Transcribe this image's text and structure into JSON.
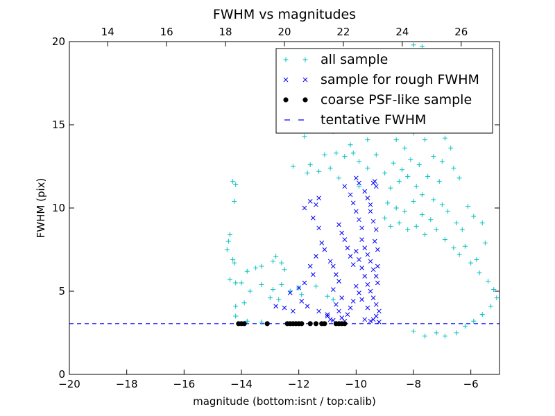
{
  "chart_data": {
    "type": "scatter",
    "title": "FWHM vs magnitudes",
    "xlabel": "magnitude (bottom:isnt / top:calib)",
    "ylabel": "FWHM (pix)",
    "xlim": [
      -20,
      -5
    ],
    "ylim": [
      0,
      20
    ],
    "xlim_top": [
      12.7,
      27.3
    ],
    "x_ticks": [
      -20,
      -18,
      -16,
      -14,
      -12,
      -10,
      -8,
      -6
    ],
    "x_tick_labels": [
      "−20",
      "−18",
      "−16",
      "−14",
      "−12",
      "−10",
      "−8",
      "−6"
    ],
    "x_top_ticks": [
      14,
      16,
      18,
      20,
      22,
      24,
      26
    ],
    "x_top_tick_labels": [
      "14",
      "16",
      "18",
      "20",
      "22",
      "24",
      "26"
    ],
    "y_ticks": [
      0,
      5,
      10,
      15,
      20
    ],
    "y_tick_labels": [
      "0",
      "5",
      "10",
      "15",
      "20"
    ],
    "grid": false,
    "legend": {
      "placement": "top-right",
      "entries": [
        {
          "label": "all sample",
          "marker": "plus",
          "color": "#00bfbf"
        },
        {
          "label": "sample for rough FWHM",
          "marker": "x",
          "color": "#0000ff"
        },
        {
          "label": "coarse PSF-like sample",
          "marker": "dot",
          "color": "#000000"
        },
        {
          "label": "tentative FWHM",
          "marker": "dash",
          "color": "#0000ff"
        }
      ]
    },
    "tentative_fwhm": 3.05,
    "series": [
      {
        "name": "all sample",
        "marker": "plus",
        "color": "#00bfbf",
        "points": [
          [
            -14.3,
            11.6
          ],
          [
            -14.2,
            11.4
          ],
          [
            -14.25,
            10.4
          ],
          [
            -14.4,
            8.4
          ],
          [
            -14.45,
            8.0
          ],
          [
            -14.5,
            7.5
          ],
          [
            -14.3,
            6.9
          ],
          [
            -14.25,
            6.7
          ],
          [
            -13.8,
            6.2
          ],
          [
            -13.5,
            6.4
          ],
          [
            -13.3,
            6.5
          ],
          [
            -12.9,
            6.8
          ],
          [
            -12.8,
            7.1
          ],
          [
            -12.6,
            6.7
          ],
          [
            -12.5,
            6.3
          ],
          [
            -14.4,
            5.7
          ],
          [
            -14.2,
            5.5
          ],
          [
            -14.0,
            5.5
          ],
          [
            -13.7,
            5.0
          ],
          [
            -13.3,
            5.4
          ],
          [
            -12.9,
            5.1
          ],
          [
            -12.6,
            5.4
          ],
          [
            -12.3,
            5.0
          ],
          [
            -12.0,
            5.2
          ],
          [
            -14.2,
            4.1
          ],
          [
            -13.9,
            4.3
          ],
          [
            -13.0,
            4.6
          ],
          [
            -12.7,
            4.5
          ],
          [
            -11.9,
            4.8
          ],
          [
            -11.4,
            5.3
          ],
          [
            -11.0,
            4.7
          ],
          [
            -10.8,
            4.5
          ],
          [
            -14.2,
            3.5
          ],
          [
            -13.8,
            3.2
          ],
          [
            -13.3,
            3.15
          ],
          [
            -11.6,
            12.6
          ],
          [
            -11.3,
            12.2
          ],
          [
            -11.1,
            13.2
          ],
          [
            -10.9,
            12.4
          ],
          [
            -10.7,
            13.3
          ],
          [
            -10.4,
            13.1
          ],
          [
            -10.2,
            13.8
          ],
          [
            -9.9,
            12.8
          ],
          [
            -9.6,
            14.1
          ],
          [
            -9.3,
            13.2
          ],
          [
            -12.2,
            12.5
          ],
          [
            -11.7,
            12.1
          ],
          [
            -10.6,
            11.8
          ],
          [
            -9.9,
            11.3
          ],
          [
            -9.6,
            12.4
          ],
          [
            -10.1,
            13.3
          ],
          [
            -11.0,
            15.2
          ],
          [
            -10.8,
            14.6
          ],
          [
            -10.5,
            16.1
          ],
          [
            -10.1,
            15.6
          ],
          [
            -11.8,
            14.3
          ],
          [
            -12.1,
            15.3
          ],
          [
            -9.2,
            16.8
          ],
          [
            -9.1,
            15.8
          ],
          [
            -8.9,
            15.0
          ],
          [
            -8.6,
            16.4
          ],
          [
            -8.4,
            17.2
          ],
          [
            -8.2,
            16.3
          ],
          [
            -8.1,
            18.2
          ],
          [
            -7.9,
            17.5
          ],
          [
            -7.8,
            19.1
          ],
          [
            -8.0,
            19.8
          ],
          [
            -7.7,
            19.7
          ],
          [
            -7.6,
            18.7
          ],
          [
            -7.5,
            16.1
          ],
          [
            -7.4,
            15.7
          ],
          [
            -7.2,
            15.3
          ],
          [
            -6.9,
            14.2
          ],
          [
            -6.7,
            13.6
          ],
          [
            -6.6,
            12.4
          ],
          [
            -6.4,
            11.8
          ],
          [
            -6.1,
            10.1
          ],
          [
            -5.9,
            9.5
          ],
          [
            -5.6,
            9.1
          ],
          [
            -5.5,
            7.9
          ],
          [
            -5.8,
            6.9
          ],
          [
            -8.6,
            14.1
          ],
          [
            -8.3,
            13.6
          ],
          [
            -8.0,
            14.5
          ],
          [
            -7.6,
            14.1
          ],
          [
            -7.3,
            13.1
          ],
          [
            -7.0,
            12.8
          ],
          [
            -8.7,
            12.7
          ],
          [
            -8.4,
            12.3
          ],
          [
            -8.1,
            12.9
          ],
          [
            -7.8,
            12.6
          ],
          [
            -7.5,
            11.9
          ],
          [
            -7.1,
            11.6
          ],
          [
            -9.0,
            12.1
          ],
          [
            -8.8,
            11.2
          ],
          [
            -8.5,
            11.6
          ],
          [
            -8.2,
            11.9
          ],
          [
            -7.9,
            11.3
          ],
          [
            -7.7,
            10.8
          ],
          [
            -7.3,
            10.5
          ],
          [
            -7.0,
            10.2
          ],
          [
            -6.8,
            9.8
          ],
          [
            -6.5,
            9.1
          ],
          [
            -6.3,
            8.7
          ],
          [
            -6.2,
            7.7
          ],
          [
            -8.9,
            10.3
          ],
          [
            -8.6,
            10.0
          ],
          [
            -8.3,
            9.8
          ],
          [
            -8.0,
            10.4
          ],
          [
            -7.7,
            9.6
          ],
          [
            -7.4,
            9.3
          ],
          [
            -9.0,
            9.4
          ],
          [
            -8.8,
            8.9
          ],
          [
            -8.5,
            9.1
          ],
          [
            -8.2,
            8.7
          ],
          [
            -7.9,
            8.9
          ],
          [
            -7.6,
            8.4
          ],
          [
            -7.2,
            8.7
          ],
          [
            -6.9,
            8.1
          ],
          [
            -6.6,
            7.6
          ],
          [
            -6.4,
            7.2
          ],
          [
            -6.0,
            6.7
          ],
          [
            -5.7,
            6.1
          ],
          [
            -5.4,
            5.6
          ],
          [
            -5.2,
            5.1
          ],
          [
            -5.1,
            4.6
          ],
          [
            -5.3,
            4.1
          ],
          [
            -5.6,
            3.6
          ],
          [
            -5.9,
            3.2
          ],
          [
            -6.2,
            2.9
          ],
          [
            -6.5,
            2.5
          ],
          [
            -6.9,
            2.3
          ],
          [
            -7.2,
            2.5
          ],
          [
            -7.6,
            2.3
          ],
          [
            -8.0,
            2.6
          ]
        ]
      },
      {
        "name": "sample for rough FWHM",
        "marker": "x",
        "color": "#0000ff",
        "points": [
          [
            -11.3,
            10.6
          ],
          [
            -11.4,
            10.2
          ],
          [
            -11.6,
            10.4
          ],
          [
            -11.8,
            10.0
          ],
          [
            -11.5,
            9.4
          ],
          [
            -11.3,
            8.8
          ],
          [
            -11.2,
            7.9
          ],
          [
            -11.1,
            7.5
          ],
          [
            -11.4,
            7.1
          ],
          [
            -11.6,
            6.5
          ],
          [
            -11.5,
            6.0
          ],
          [
            -11.8,
            5.5
          ],
          [
            -12.0,
            5.2
          ],
          [
            -12.3,
            4.9
          ],
          [
            -11.9,
            4.4
          ],
          [
            -11.7,
            4.1
          ],
          [
            -11.3,
            3.8
          ],
          [
            -11.0,
            3.6
          ],
          [
            -10.9,
            6.8
          ],
          [
            -10.8,
            6.5
          ],
          [
            -10.7,
            6.0
          ],
          [
            -10.6,
            5.6
          ],
          [
            -10.8,
            5.1
          ],
          [
            -10.5,
            4.6
          ],
          [
            -10.7,
            4.2
          ],
          [
            -10.6,
            3.8
          ],
          [
            -10.5,
            3.4
          ],
          [
            -10.4,
            3.2
          ],
          [
            -10.6,
            9.0
          ],
          [
            -10.5,
            8.5
          ],
          [
            -10.4,
            8.1
          ],
          [
            -10.3,
            7.6
          ],
          [
            -10.2,
            7.1
          ],
          [
            -10.1,
            6.6
          ],
          [
            -10.4,
            11.3
          ],
          [
            -10.2,
            10.8
          ],
          [
            -10.1,
            10.3
          ],
          [
            -10.0,
            9.8
          ],
          [
            -9.9,
            9.3
          ],
          [
            -9.8,
            8.8
          ],
          [
            -10.0,
            11.8
          ],
          [
            -9.9,
            11.5
          ],
          [
            -9.7,
            11.0
          ],
          [
            -9.6,
            10.6
          ],
          [
            -9.5,
            10.2
          ],
          [
            -9.4,
            11.5
          ],
          [
            -9.3,
            11.3
          ],
          [
            -9.35,
            11.6
          ],
          [
            -9.5,
            9.8
          ],
          [
            -9.4,
            9.2
          ],
          [
            -9.3,
            8.7
          ],
          [
            -9.35,
            8.0
          ],
          [
            -9.8,
            8.1
          ],
          [
            -9.7,
            7.6
          ],
          [
            -9.6,
            7.2
          ],
          [
            -9.5,
            6.8
          ],
          [
            -9.4,
            6.3
          ],
          [
            -9.3,
            5.9
          ],
          [
            -10.0,
            7.4
          ],
          [
            -9.9,
            6.9
          ],
          [
            -9.8,
            6.4
          ],
          [
            -9.7,
            5.9
          ],
          [
            -9.6,
            5.4
          ],
          [
            -9.5,
            5.0
          ],
          [
            -9.4,
            4.6
          ],
          [
            -9.3,
            4.2
          ],
          [
            -9.2,
            3.8
          ],
          [
            -9.3,
            3.5
          ],
          [
            -9.4,
            3.3
          ],
          [
            -9.6,
            4.0
          ],
          [
            -9.8,
            4.5
          ],
          [
            -9.9,
            4.9
          ],
          [
            -10.0,
            5.3
          ],
          [
            -10.1,
            4.4
          ],
          [
            -10.2,
            4.0
          ],
          [
            -10.3,
            3.6
          ],
          [
            -12.5,
            4.0
          ],
          [
            -12.8,
            4.1
          ],
          [
            -12.2,
            3.8
          ],
          [
            -11.0,
            3.5
          ],
          [
            -10.9,
            3.3
          ],
          [
            -10.8,
            3.25
          ],
          [
            -9.7,
            3.3
          ],
          [
            -9.5,
            3.2
          ],
          [
            -9.2,
            3.15
          ],
          [
            -9.25,
            6.5
          ],
          [
            -9.25,
            7.5
          ],
          [
            -9.25,
            5.5
          ]
        ]
      },
      {
        "name": "coarse PSF-like sample",
        "marker": "dot",
        "color": "#000000",
        "points": [
          [
            -14.1,
            3.05
          ],
          [
            -14.0,
            3.05
          ],
          [
            -13.9,
            3.05
          ],
          [
            -13.1,
            3.05
          ],
          [
            -12.4,
            3.05
          ],
          [
            -12.3,
            3.05
          ],
          [
            -12.2,
            3.05
          ],
          [
            -12.1,
            3.05
          ],
          [
            -12.0,
            3.05
          ],
          [
            -11.9,
            3.05
          ],
          [
            -11.6,
            3.05
          ],
          [
            -11.4,
            3.05
          ],
          [
            -11.2,
            3.05
          ],
          [
            -11.1,
            3.05
          ],
          [
            -10.7,
            3.05
          ],
          [
            -10.6,
            3.05
          ],
          [
            -10.5,
            3.05
          ],
          [
            -10.4,
            3.05
          ]
        ]
      }
    ]
  }
}
